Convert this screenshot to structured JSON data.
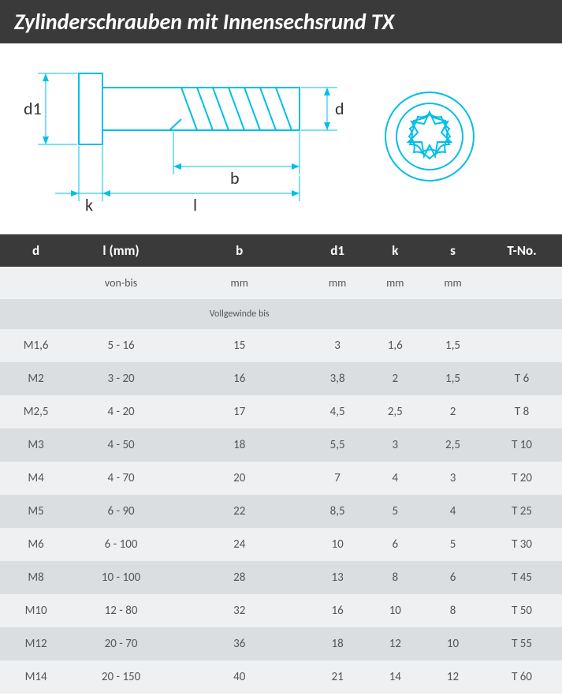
{
  "title": "Zylinderschrauben mit Innensechsrund TX",
  "diagram": {
    "labels": {
      "d1": "d1",
      "d": "d",
      "b": "b",
      "l": "l",
      "k": "k"
    },
    "color": "#00bfe8",
    "stroke_width": 2
  },
  "columns": [
    "d",
    "l (mm)",
    "b",
    "d1",
    "k",
    "s",
    "T-No."
  ],
  "sub1": [
    "",
    "von-bis",
    "mm",
    "mm",
    "mm",
    "mm",
    ""
  ],
  "sub2": [
    "",
    "",
    "Vollgewinde bis",
    "",
    "",
    "",
    ""
  ],
  "rows": [
    [
      "M1,6",
      "5 - 16",
      "15",
      "3",
      "1,6",
      "1,5",
      ""
    ],
    [
      "M2",
      "3 - 20",
      "16",
      "3,8",
      "2",
      "1,5",
      "T 6"
    ],
    [
      "M2,5",
      "4 - 20",
      "17",
      "4,5",
      "2,5",
      "2",
      "T 8"
    ],
    [
      "M3",
      "4 - 50",
      "18",
      "5,5",
      "3",
      "2,5",
      "T 10"
    ],
    [
      "M4",
      "4 - 70",
      "20",
      "7",
      "4",
      "3",
      "T 20"
    ],
    [
      "M5",
      "6 - 90",
      "22",
      "8,5",
      "5",
      "4",
      "T 25"
    ],
    [
      "M6",
      "6 - 100",
      "24",
      "10",
      "6",
      "5",
      "T 30"
    ],
    [
      "M8",
      "10 - 100",
      "28",
      "13",
      "8",
      "6",
      "T 45"
    ],
    [
      "M10",
      "12 - 80",
      "32",
      "16",
      "10",
      "8",
      "T 50"
    ],
    [
      "M12",
      "20 - 70",
      "36",
      "18",
      "12",
      "10",
      "T 55"
    ],
    [
      "M14",
      "20 - 150",
      "40",
      "21",
      "14",
      "12",
      "T 60"
    ]
  ]
}
